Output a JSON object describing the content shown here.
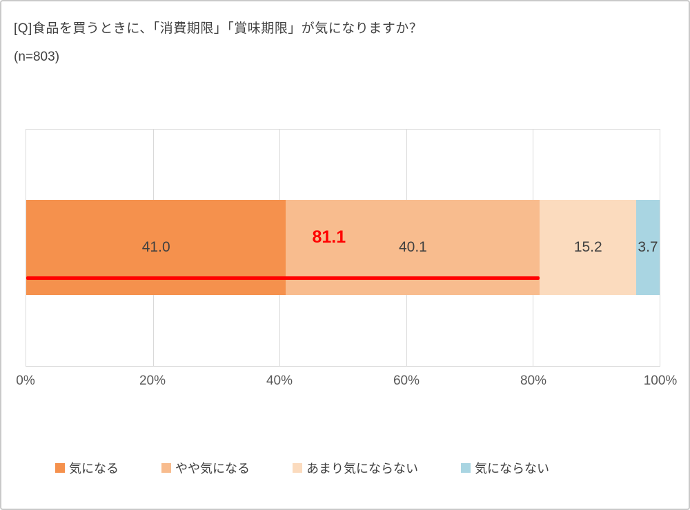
{
  "title": "[Q]食品を買うときに、「消費期限」「賞味期限」が気になりますか？",
  "subtitle": "(n=803)",
  "chart_data": {
    "type": "bar",
    "orientation": "horizontal-stacked",
    "title": "[Q]食品を買うときに、「消費期限」「賞味期限」が気になりますか？",
    "sample_size_label": "(n=803)",
    "categories": [
      "気になる",
      "やや気になる",
      "あまり気にならない",
      "気にならない"
    ],
    "values": [
      41.0,
      40.1,
      15.2,
      3.7
    ],
    "value_labels": [
      "41.0",
      "40.1",
      "15.2",
      "3.7"
    ],
    "colors": [
      "#f5914d",
      "#f8bc8e",
      "#fbdbbe",
      "#a9d5e2"
    ],
    "annotation": {
      "label": "81.1",
      "value": 81.1,
      "label_position_pct": 47.8,
      "color": "#ff0000"
    },
    "x_ticks": [
      "0%",
      "20%",
      "40%",
      "60%",
      "80%",
      "100%"
    ],
    "xlim": [
      0,
      100
    ],
    "grid": true,
    "legend_position": "bottom",
    "legend": [
      "気になる",
      "やや気になる",
      "あまり気にならない",
      "気にならない"
    ]
  }
}
